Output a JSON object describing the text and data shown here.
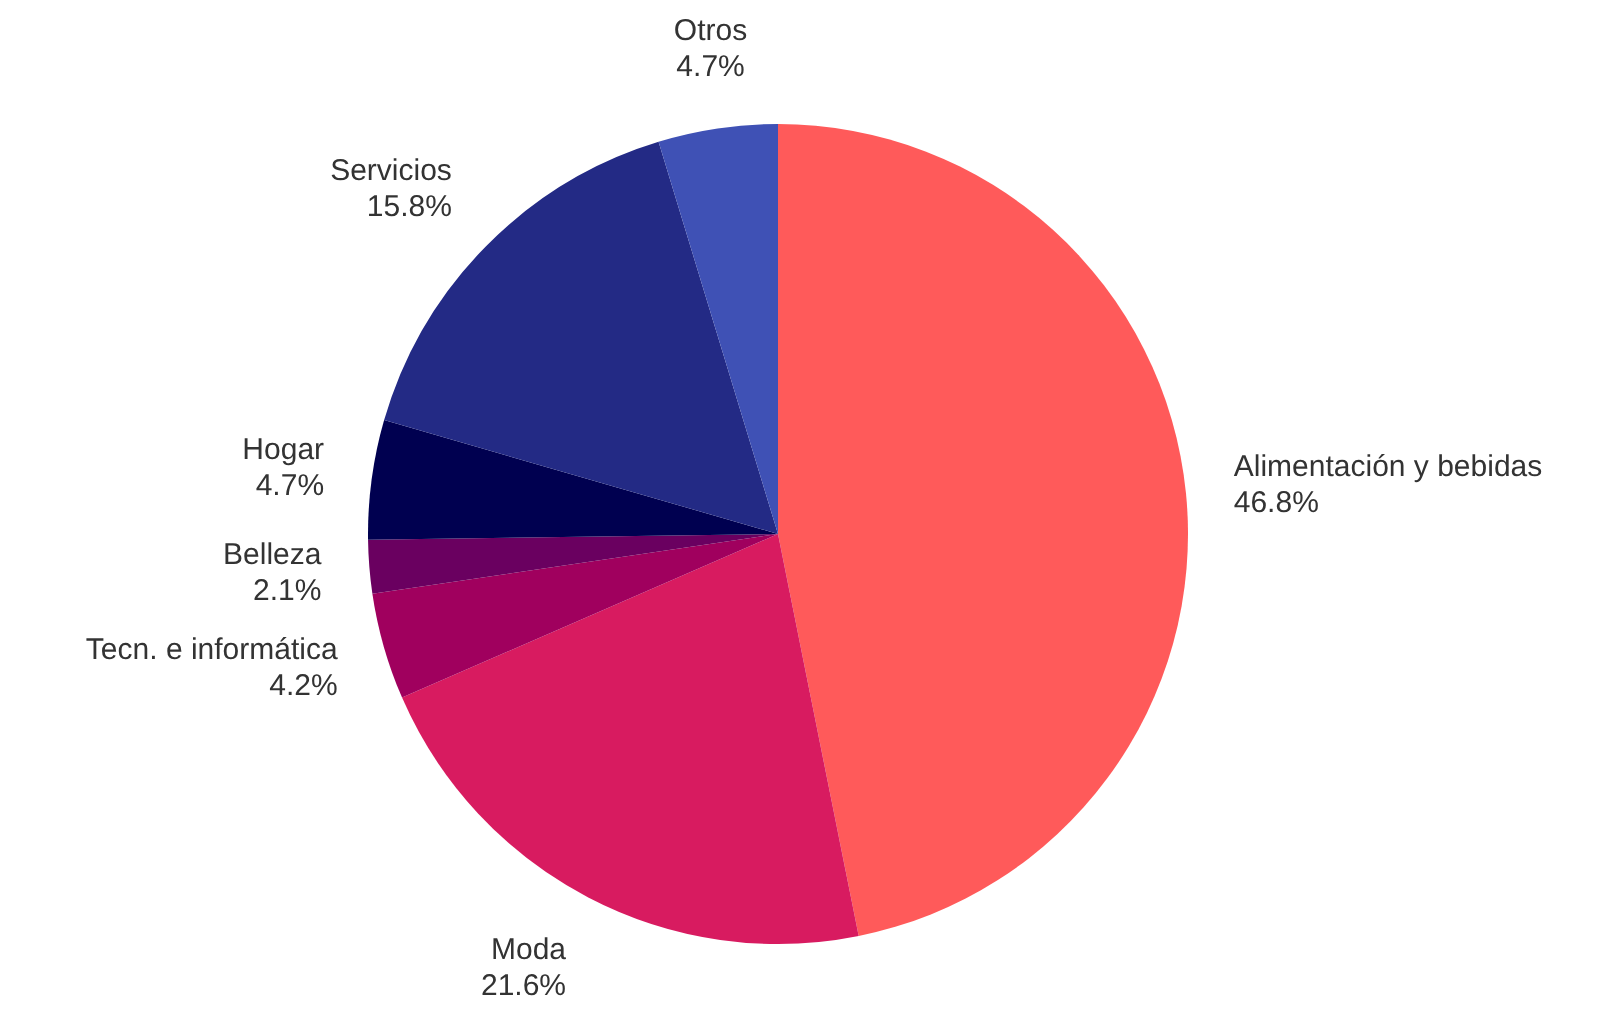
{
  "chart_data": {
    "type": "pie",
    "categories": [
      "Alimentación y bebidas",
      "Moda",
      "Tecn. e informática",
      "Belleza",
      "Hogar",
      "Servicios",
      "Otros"
    ],
    "values": [
      46.8,
      21.6,
      4.2,
      2.1,
      4.7,
      15.8,
      4.7
    ],
    "colors": [
      "#ff5a5a",
      "#d81b60",
      "#a0005e",
      "#6a0060",
      "#000050",
      "#232a85",
      "#3f51b5"
    ],
    "value_labels": [
      "46.8%",
      "21.6%",
      "4.2%",
      "2.1%",
      "4.7%",
      "15.8%",
      "4.7%"
    ]
  }
}
